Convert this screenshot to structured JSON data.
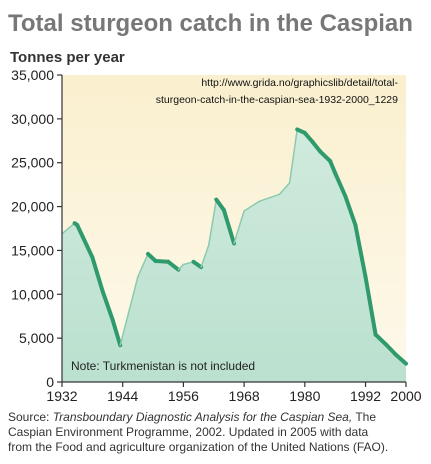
{
  "chart_data": {
    "type": "area",
    "title": "Total sturgeon catch in the Caspian",
    "ylabel": "Tonnes per year",
    "xlabel": "",
    "url_note": [
      "http://www.grida.no/graphicslib/detail/total-",
      "sturgeon-catch-in-the-caspian-sea-1932-2000_1229"
    ],
    "note": "Note: Turkmenistan is not included",
    "source_lines": [
      "Source: Transboundary Diagnostic Analysis for the Caspian Sea,  The",
      "Caspian Environment Programme, 2002. Updated in 2005 with data",
      "from the Food and agriculture organization of the United Nations (FAO)."
    ],
    "xlim": [
      1932,
      2000
    ],
    "ylim": [
      0,
      35000
    ],
    "x_ticks": [
      1932,
      1944,
      1956,
      1968,
      1980,
      1992,
      2000
    ],
    "x_tick_labels": [
      "1932",
      "1944",
      "1956",
      "1968",
      "1980",
      "1992",
      "2000"
    ],
    "y_ticks": [
      0,
      5000,
      10000,
      15000,
      20000,
      25000,
      30000,
      35000
    ],
    "y_tick_labels": [
      "0",
      "5,000",
      "10,000",
      "15,000",
      "20,000",
      "25,000",
      "30,000",
      "35,000"
    ],
    "grid": false,
    "series": [
      {
        "x": [
          1932,
          1934.5,
          1935,
          1938,
          1940,
          1942,
          1943.5,
          1947,
          1949,
          1950.5,
          1953,
          1955,
          1956,
          1958,
          1959.5,
          1961,
          1962.5,
          1964,
          1966,
          1968,
          1971,
          1975,
          1977,
          1978.5,
          1980,
          1981.5,
          1983,
          1985,
          1986,
          1988,
          1990,
          1992,
          1994,
          1996,
          1998,
          2000
        ],
        "y": [
          16900,
          18100,
          17900,
          14200,
          10400,
          7100,
          4200,
          12000,
          14600,
          13800,
          13700,
          12800,
          13400,
          13700,
          13100,
          15600,
          20800,
          19600,
          15800,
          19500,
          20600,
          21400,
          22700,
          28800,
          28400,
          27400,
          26300,
          25200,
          23800,
          21200,
          17900,
          12000,
          5400,
          4300,
          3100,
          2100
        ]
      }
    ],
    "colors": {
      "area_fill": "#bfe3d3",
      "area_edge": "#2f9a6c",
      "title": "#777777",
      "background_top": "#faf0cf",
      "background_bottom": "#fdf8ea"
    }
  }
}
